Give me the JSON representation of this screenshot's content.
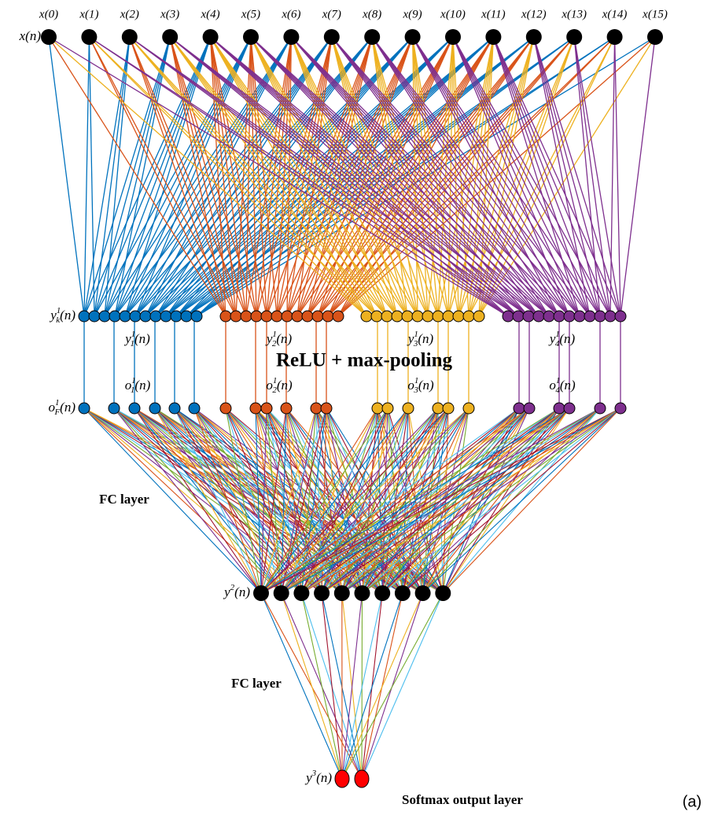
{
  "inputs": [
    "x(0)",
    "x(1)",
    "x(2)",
    "x(3)",
    "x(4)",
    "x(5)",
    "x(6)",
    "x(7)",
    "x(8)",
    "x(9)",
    "x(10)",
    "x(11)",
    "x(12)",
    "x(13)",
    "x(14)",
    "x(15)"
  ],
  "layer_labels": [
    {
      "base": "x",
      "arg": "(n)"
    },
    {
      "base": "y",
      "sup": "1",
      "sub": "k",
      "arg": "(n)"
    },
    {
      "base": "o",
      "sup": "1",
      "sub": "F",
      "arg": "(n)"
    },
    {
      "base": "y",
      "sup": "2",
      "arg": "(n)"
    },
    {
      "base": "y",
      "sup": "3",
      "arg": "(n)"
    }
  ],
  "conv_labels": [
    {
      "base": "y",
      "sup": "1",
      "sub": "1",
      "arg": "(n)"
    },
    {
      "base": "y",
      "sup": "1",
      "sub": "2",
      "arg": "(n)"
    },
    {
      "base": "y",
      "sup": "1",
      "sub": "3",
      "arg": "(n)"
    },
    {
      "base": "y",
      "sup": "1",
      "sub": "4",
      "arg": "(n)"
    }
  ],
  "pool_labels": [
    {
      "base": "o",
      "sup": "1",
      "sub": "1",
      "arg": "(n)"
    },
    {
      "base": "o",
      "sup": "1",
      "sub": "2",
      "arg": "(n)"
    },
    {
      "base": "o",
      "sup": "1",
      "sub": "3",
      "arg": "(n)"
    },
    {
      "base": "o",
      "sup": "1",
      "sub": "4",
      "arg": "(n)"
    }
  ],
  "annotations": {
    "pooling": "ReLU + max-pooling",
    "fc1": "FC layer",
    "fc2": "FC layer",
    "output": "Softmax output layer"
  },
  "panel": "(a)"
}
